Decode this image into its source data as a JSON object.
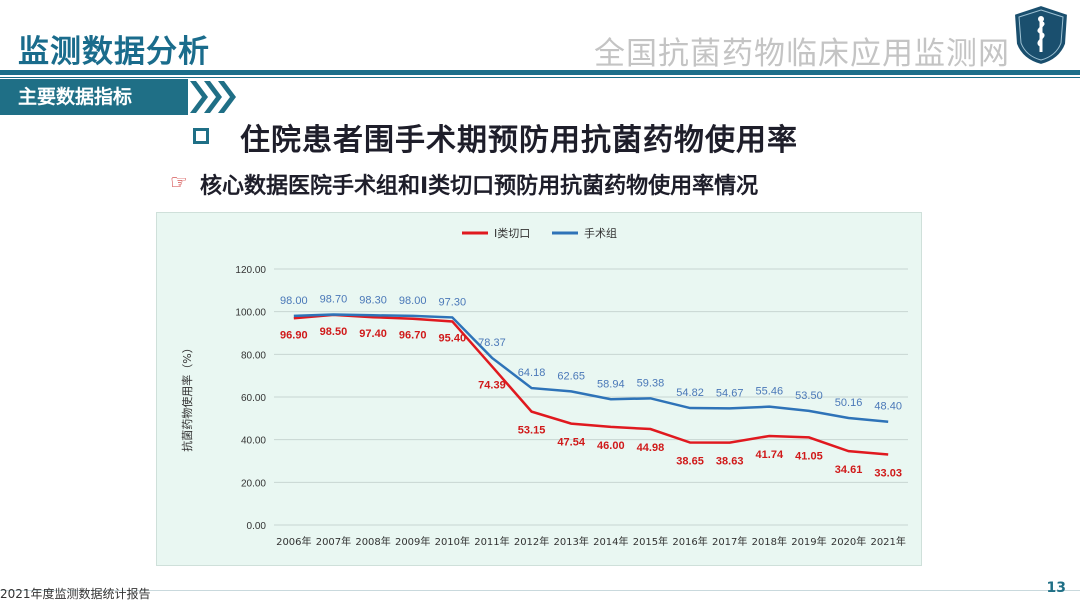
{
  "header": {
    "title": "监测数据分析",
    "org": "全国抗菌药物临床应用监测网",
    "section_tag": "主要数据指标"
  },
  "headings": {
    "main": "住院患者围手术期预防用抗菌药物使用率",
    "sub": "核心数据医院手术组和Ⅰ类切口预防用抗菌药物使用率情况"
  },
  "footer": {
    "report": "2021年度监测数据统计报告",
    "page": "13"
  },
  "colors": {
    "brand": "#1f6f86",
    "series_red": "#e0191f",
    "series_blue": "#2e73b8",
    "chart_bg": "#e9f7f2"
  },
  "chart_data": {
    "type": "line",
    "ylabel": "抗菌药物使用率（%）",
    "ylim": [
      0,
      120
    ],
    "yticks": [
      "0.00",
      "20.00",
      "40.00",
      "60.00",
      "80.00",
      "100.00",
      "120.00"
    ],
    "grid": true,
    "legend_position": "top",
    "categories": [
      "2006年",
      "2007年",
      "2008年",
      "2009年",
      "2010年",
      "2011年",
      "2012年",
      "2013年",
      "2014年",
      "2015年",
      "2016年",
      "2017年",
      "2018年",
      "2019年",
      "2020年",
      "2021年"
    ],
    "series": [
      {
        "name": "Ⅰ类切口",
        "color": "#e0191f",
        "values": [
          96.9,
          98.5,
          97.4,
          96.7,
          95.4,
          74.39,
          53.15,
          47.54,
          46.0,
          44.98,
          38.65,
          38.63,
          41.74,
          41.05,
          34.61,
          33.03
        ],
        "labels": [
          "96.90",
          "98.50",
          "97.40",
          "96.70",
          "95.40",
          "74.39",
          "53.15",
          "47.54",
          "46.00",
          "44.98",
          "38.65",
          "38.63",
          "41.74",
          "41.05",
          "34.61",
          "33.03"
        ]
      },
      {
        "name": "手术组",
        "color": "#2e73b8",
        "values": [
          98.0,
          98.7,
          98.3,
          98.0,
          97.3,
          78.37,
          64.18,
          62.65,
          58.94,
          59.38,
          54.82,
          54.67,
          55.46,
          53.5,
          50.16,
          48.4
        ],
        "labels": [
          "98.00",
          "98.70",
          "98.30",
          "98.00",
          "97.30",
          "78.37",
          "64.18",
          "62.65",
          "58.94",
          "59.38",
          "54.82",
          "54.67",
          "55.46",
          "53.50",
          "50.16",
          "48.40"
        ]
      }
    ]
  }
}
